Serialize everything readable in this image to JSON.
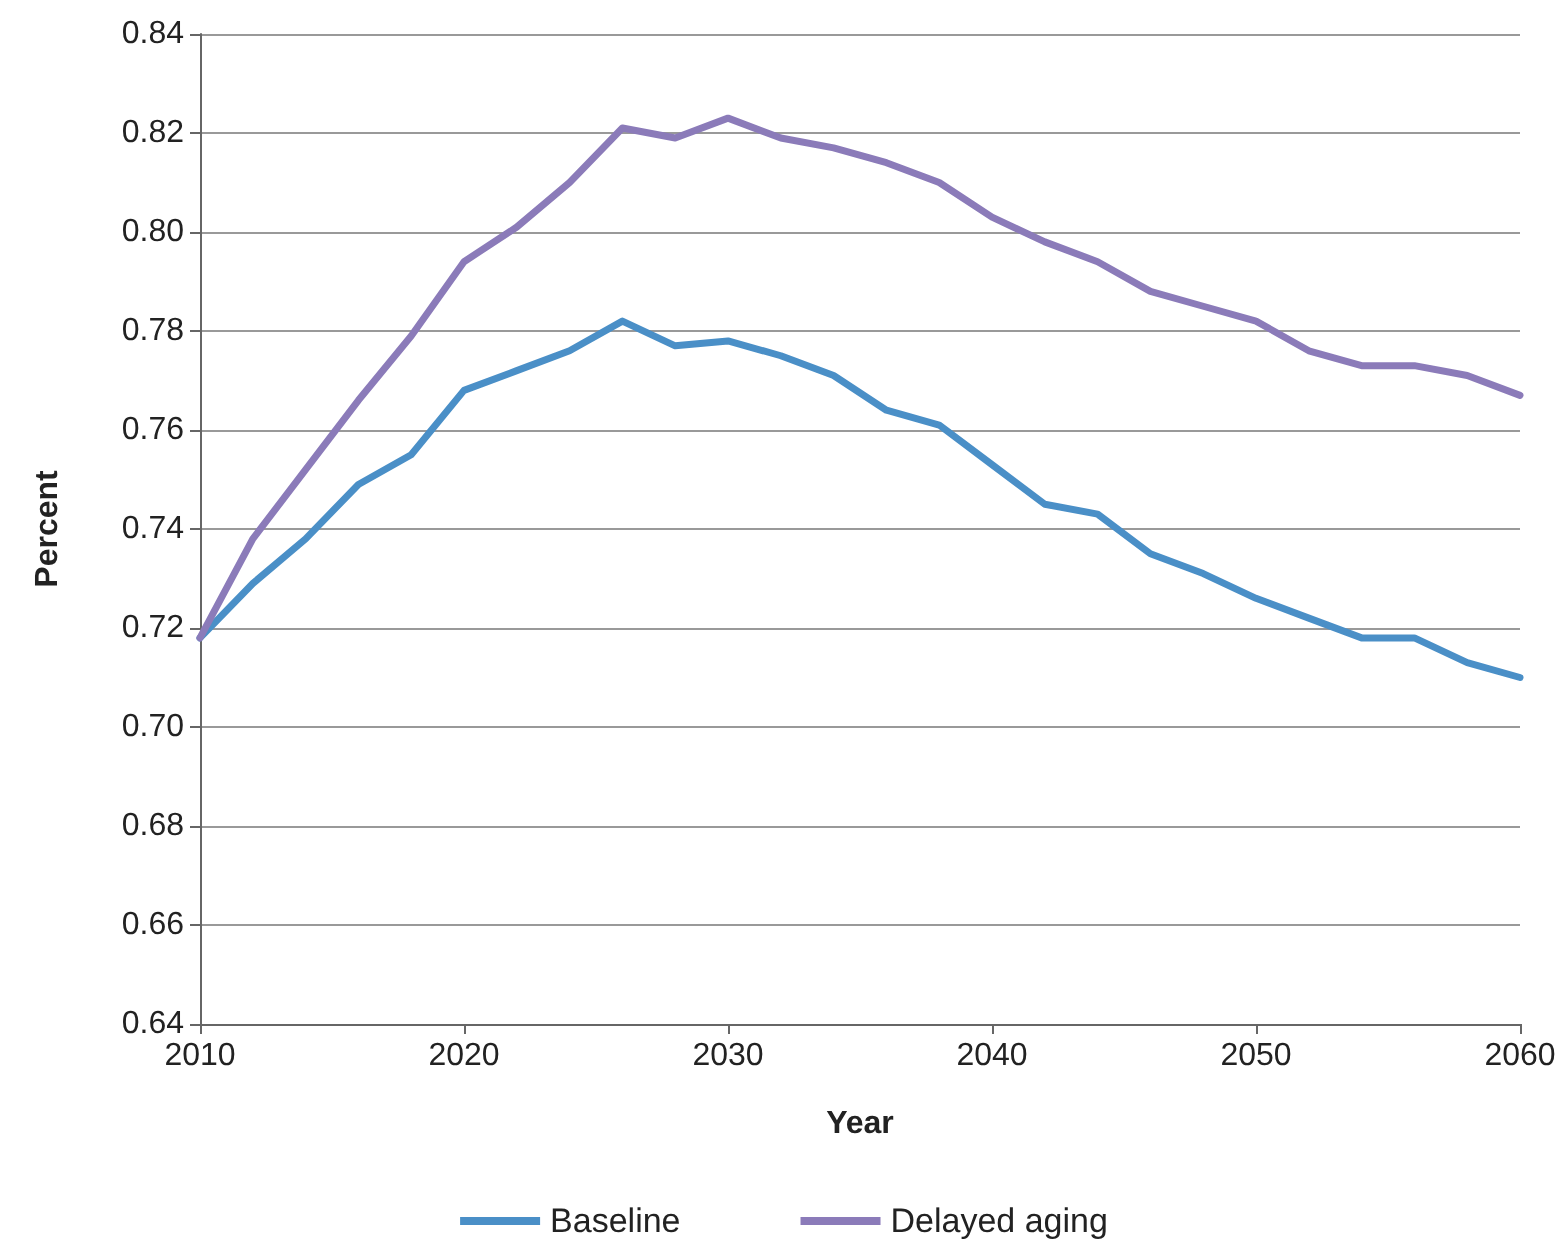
{
  "chart_data": {
    "type": "line",
    "xlabel": "Year",
    "ylabel": "Percent",
    "x": [
      2010,
      2012,
      2014,
      2016,
      2018,
      2020,
      2022,
      2024,
      2026,
      2028,
      2030,
      2032,
      2034,
      2036,
      2038,
      2040,
      2042,
      2044,
      2046,
      2048,
      2050,
      2052,
      2054,
      2056,
      2058,
      2060
    ],
    "series": [
      {
        "name": "Baseline",
        "color": "#4a8fc7",
        "values": [
          0.718,
          0.729,
          0.738,
          0.749,
          0.755,
          0.768,
          0.772,
          0.776,
          0.782,
          0.777,
          0.778,
          0.775,
          0.771,
          0.764,
          0.761,
          0.753,
          0.745,
          0.743,
          0.735,
          0.731,
          0.726,
          0.722,
          0.718,
          0.718,
          0.713,
          0.71
        ]
      },
      {
        "name": "Delayed aging",
        "color": "#8b7bb9",
        "values": [
          0.718,
          0.738,
          0.752,
          0.766,
          0.779,
          0.794,
          0.801,
          0.81,
          0.821,
          0.819,
          0.823,
          0.819,
          0.817,
          0.814,
          0.81,
          0.803,
          0.798,
          0.794,
          0.788,
          0.785,
          0.782,
          0.776,
          0.773,
          0.773,
          0.771,
          0.767
        ]
      }
    ],
    "xlim": [
      2010,
      2060
    ],
    "xticks": [
      2010,
      2020,
      2030,
      2040,
      2050,
      2060
    ],
    "ylim": [
      0.64,
      0.84
    ],
    "yticks": [
      {
        "value": 0.64,
        "label": "0.64"
      },
      {
        "value": 0.66,
        "label": "0.66"
      },
      {
        "value": 0.68,
        "label": "0.68"
      },
      {
        "value": 0.7,
        "label": "0.70"
      },
      {
        "value": 0.72,
        "label": "0.72"
      },
      {
        "value": 0.74,
        "label": "0.74"
      },
      {
        "value": 0.76,
        "label": "0.76"
      },
      {
        "value": 0.78,
        "label": "0.78"
      },
      {
        "value": 0.8,
        "label": "0.80"
      },
      {
        "value": 0.82,
        "label": "0.82"
      },
      {
        "value": 0.84,
        "label": "0.84"
      }
    ],
    "grid": "y",
    "legend": "bottom",
    "marker": "none",
    "line_style": "solid"
  }
}
